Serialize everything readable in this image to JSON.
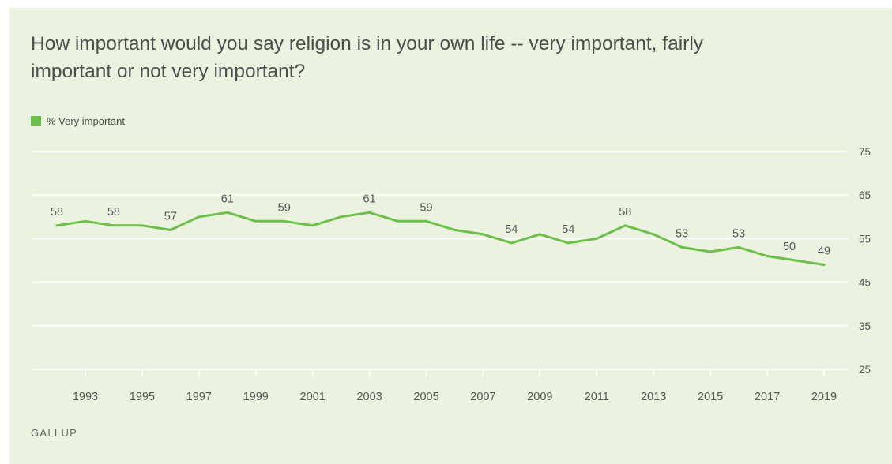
{
  "header": {
    "title": "How important would you say religion is in your own life -- very important, fairly important or not very important?"
  },
  "legend": {
    "label": "% Very important",
    "color": "#6cc04a"
  },
  "footer": {
    "source": "GALLUP"
  },
  "colors": {
    "background": "#ebf2df",
    "line": "#6cc04a",
    "grid": "#ffffff",
    "text": "#555555"
  },
  "chart_data": {
    "type": "line",
    "title": "How important would you say religion is in your own life -- very important, fairly important or not very important?",
    "x": [
      1992,
      1993,
      1994,
      1995,
      1996,
      1997,
      1998,
      1999,
      2000,
      2001,
      2002,
      2003,
      2004,
      2005,
      2006,
      2007,
      2008,
      2009,
      2010,
      2011,
      2012,
      2013,
      2014,
      2015,
      2016,
      2017,
      2018,
      2019
    ],
    "series": [
      {
        "name": "% Very important",
        "values": [
          58,
          59,
          58,
          58,
          57,
          60,
          61,
          59,
          59,
          58,
          60,
          61,
          59,
          59,
          57,
          56,
          54,
          56,
          54,
          55,
          58,
          56,
          53,
          52,
          53,
          51,
          50,
          49
        ]
      }
    ],
    "data_labels": [
      {
        "x": 1992,
        "value": "58"
      },
      {
        "x": 1994,
        "value": "58"
      },
      {
        "x": 1996,
        "value": "57"
      },
      {
        "x": 1998,
        "value": "61"
      },
      {
        "x": 2000,
        "value": "59"
      },
      {
        "x": 2003,
        "value": "61"
      },
      {
        "x": 2005,
        "value": "59"
      },
      {
        "x": 2008,
        "value": "54"
      },
      {
        "x": 2010,
        "value": "54"
      },
      {
        "x": 2012,
        "value": "58"
      },
      {
        "x": 2014,
        "value": "53"
      },
      {
        "x": 2016,
        "value": "53"
      },
      {
        "x": 2018,
        "value": "50"
      },
      {
        "x": 2019,
        "value": "49"
      }
    ],
    "x_ticks": [
      "1993",
      "1995",
      "1997",
      "1999",
      "2001",
      "2003",
      "2005",
      "2007",
      "2009",
      "2011",
      "2013",
      "2015",
      "2017",
      "2019"
    ],
    "y_ticks": [
      "25",
      "35",
      "45",
      "55",
      "65",
      "75"
    ],
    "ylim": [
      25,
      75
    ],
    "xlim": [
      1992,
      2019
    ],
    "grid": true,
    "y_axis_position": "right",
    "legend_position": "top-left"
  }
}
